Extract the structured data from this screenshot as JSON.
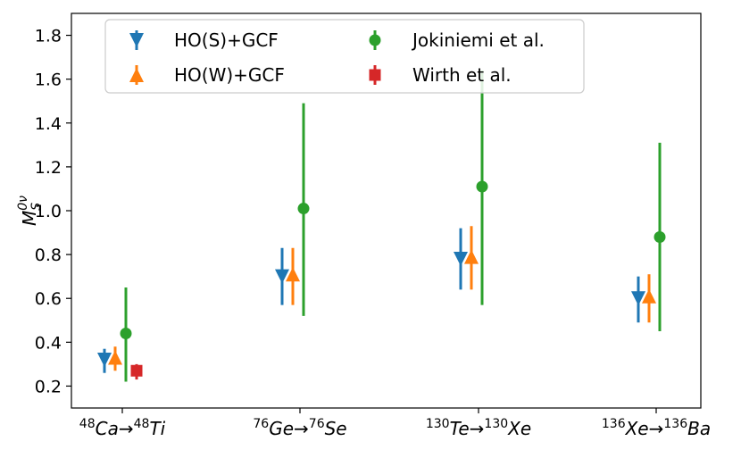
{
  "chart_data": {
    "type": "scatter",
    "title": "",
    "ylabel_main": "M",
    "ylabel_sup": "0ν",
    "ylabel_sub": "S",
    "ylim": [
      0.1,
      1.9
    ],
    "yticks": [
      0.2,
      0.4,
      0.6,
      0.8,
      1.0,
      1.2,
      1.4,
      1.6,
      1.8
    ],
    "ytick_labels": [
      "0.2",
      "0.4",
      "0.6",
      "0.8",
      "1.0",
      "1.2",
      "1.4",
      "1.6",
      "1.8"
    ],
    "categories": [
      {
        "a_mass": "48",
        "a_el": "Ca",
        "b_mass": "48",
        "b_el": "Ti"
      },
      {
        "a_mass": "76",
        "a_el": "Ge",
        "b_mass": "76",
        "b_el": "Se"
      },
      {
        "a_mass": "130",
        "a_el": "Te",
        "b_mass": "130",
        "b_el": "Xe"
      },
      {
        "a_mass": "136",
        "a_el": "Xe",
        "b_mass": "136",
        "b_el": "Ba"
      }
    ],
    "arrow": "→",
    "legend_position": "top-left",
    "grid": false,
    "series": [
      {
        "name": "HO(S)+GCF",
        "marker": "triangle-down",
        "color": "#1f77b4",
        "values": [
          0.32,
          0.7,
          0.78,
          0.6
        ],
        "err_low": [
          0.26,
          0.57,
          0.64,
          0.49
        ],
        "err_high": [
          0.37,
          0.83,
          0.92,
          0.7
        ]
      },
      {
        "name": "HO(W)+GCF",
        "marker": "triangle-up",
        "color": "#ff7f0e",
        "values": [
          0.33,
          0.71,
          0.79,
          0.61
        ],
        "err_low": [
          0.27,
          0.57,
          0.64,
          0.49
        ],
        "err_high": [
          0.38,
          0.83,
          0.93,
          0.71
        ]
      },
      {
        "name": "Jokiniemi et al.",
        "marker": "circle",
        "color": "#2ca02c",
        "values": [
          0.44,
          1.01,
          1.11,
          0.88
        ],
        "err_low": [
          0.22,
          0.52,
          0.57,
          0.45
        ],
        "err_high": [
          0.65,
          1.49,
          1.64,
          1.31
        ]
      },
      {
        "name": "Wirth et al.",
        "marker": "square",
        "color": "#d62728",
        "values": [
          0.27,
          null,
          null,
          null
        ],
        "err_low": [
          0.23,
          null,
          null,
          null
        ],
        "err_high": [
          0.3,
          null,
          null,
          null
        ]
      }
    ]
  }
}
